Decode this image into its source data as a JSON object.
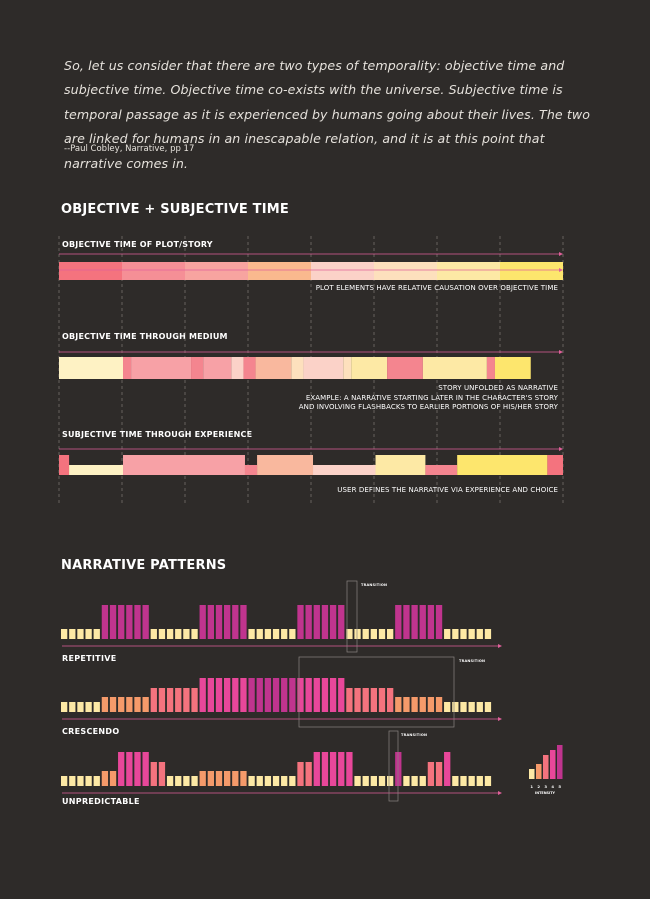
{
  "quote": {
    "text": "So, let us consider that there are two types of temporality: objective time and subjective time. Objective time co-exists with the universe. Subjective time is temporal passage as it is experienced by humans going about their lives. The two are linked for humans in an inescapable relation, and it is at this point that narrative comes in.",
    "citation": "--Paul Cobley, Narrative, pp 17"
  },
  "objective_section": {
    "title": "OBJECTIVE + SUBJECTIVE TIME",
    "plot": {
      "label": "OBJECTIVE TIME OF PLOT/STORY",
      "note": "PLOT ELEMENTS HAVE RELATIVE CAUSATION OVER OBJECTIVE TIME",
      "segments": [
        "#f4737e",
        "#f58f96",
        "#f7a4a0",
        "#fab98e",
        "#fbd2c8",
        "#fde0bd",
        "#fde9a5",
        "#fde66d"
      ]
    },
    "medium": {
      "label": "OBJECTIVE TIME THROUGH MEDIUM",
      "note_lines": [
        "STORY UNFOLDED AS NARRATIVE",
        "EXAMPLE: A NARRATIVE STARTING LATER IN THE CHARACTER'S STORY",
        "AND INVOLVING FLASHBACKS TO EARLIER PORTIONS OF HIS/HER STORY"
      ],
      "segments": [
        {
          "w": 0.127,
          "c": "#fef2c4"
        },
        {
          "w": 0.016,
          "c": "#f4858f"
        },
        {
          "w": 0.119,
          "c": "#f7a1a6"
        },
        {
          "w": 0.024,
          "c": "#f4858f"
        },
        {
          "w": 0.056,
          "c": "#f7a1a6"
        },
        {
          "w": 0.024,
          "c": "#fbd2c8"
        },
        {
          "w": 0.024,
          "c": "#f4858f"
        },
        {
          "w": 0.071,
          "c": "#f9b89e"
        },
        {
          "w": 0.024,
          "c": "#fde0bd"
        },
        {
          "w": 0.079,
          "c": "#fbd2c8"
        },
        {
          "w": 0.016,
          "c": "#fde0bd"
        },
        {
          "w": 0.071,
          "c": "#fde9a5"
        },
        {
          "w": 0.071,
          "c": "#f4858f"
        },
        {
          "w": 0.127,
          "c": "#fde9a5"
        },
        {
          "w": 0.016,
          "c": "#f4858f"
        },
        {
          "w": 0.071,
          "c": "#fde66d"
        }
      ]
    },
    "experience": {
      "label": "SUBJECTIVE TIME THROUGH EXPERIENCE",
      "note": "USER DEFINES THE NARRATIVE VIA EXPERIENCE AND CHOICE",
      "segments": [
        {
          "w": 0.02,
          "c": "#f4737e",
          "lvl": 0
        },
        {
          "w": 0.107,
          "c": "#fef2c4",
          "lvl": 1
        },
        {
          "w": 0.242,
          "c": "#f7a1a6",
          "lvl": 0
        },
        {
          "w": 0.024,
          "c": "#f4858f",
          "lvl": 1
        },
        {
          "w": 0.111,
          "c": "#f9b89e",
          "lvl": 0
        },
        {
          "w": 0.124,
          "c": "#fbd2c8",
          "lvl": 1
        },
        {
          "w": 0.099,
          "c": "#fde9a5",
          "lvl": 0
        },
        {
          "w": 0.063,
          "c": "#f4858f",
          "lvl": 1
        },
        {
          "w": 0.179,
          "c": "#fde66d",
          "lvl": 0
        },
        {
          "w": 0.031,
          "c": "#f4737e",
          "lvl": 0
        }
      ]
    }
  },
  "patterns": {
    "title": "NARRATIVE PATTERNS",
    "colors": [
      "#fde9a5",
      "#f59a6a",
      "#f4737e",
      "#e8479a",
      "#c0348e"
    ],
    "repetitive": {
      "label": "REPETITIVE",
      "transition_label": "TRANSITION",
      "levels": [
        1,
        1,
        1,
        1,
        1,
        5,
        5,
        5,
        5,
        5,
        5,
        1,
        1,
        1,
        1,
        1,
        1,
        5,
        5,
        5,
        5,
        5,
        5,
        1,
        1,
        1,
        1,
        1,
        1,
        5,
        5,
        5,
        5,
        5,
        5,
        1,
        1,
        1,
        1,
        1,
        1,
        5,
        5,
        5,
        5,
        5,
        5,
        1,
        1,
        1,
        1,
        1,
        1
      ]
    },
    "crescendo": {
      "label": "CRESCENDO",
      "transition_label": "TRANSITION",
      "levels": [
        1,
        1,
        1,
        1,
        1,
        2,
        2,
        2,
        2,
        2,
        2,
        3,
        3,
        3,
        3,
        3,
        3,
        4,
        4,
        4,
        4,
        4,
        4,
        5,
        5,
        5,
        5,
        5,
        5,
        4,
        4,
        4,
        4,
        4,
        4,
        3,
        3,
        3,
        3,
        3,
        3,
        2,
        2,
        2,
        2,
        2,
        2,
        1,
        1,
        1,
        1,
        1,
        1
      ]
    },
    "unpredictable": {
      "label": "UNPREDICTABLE",
      "transition_label": "TRANSITION",
      "levels": [
        1,
        1,
        1,
        1,
        1,
        2,
        2,
        4,
        4,
        4,
        4,
        3,
        3,
        1,
        1,
        1,
        1,
        2,
        2,
        2,
        2,
        2,
        2,
        1,
        1,
        1,
        1,
        1,
        1,
        3,
        3,
        4,
        4,
        4,
        4,
        4,
        1,
        1,
        1,
        1,
        1,
        5,
        1,
        1,
        1,
        3,
        3,
        4,
        1,
        1,
        1,
        1,
        1
      ]
    },
    "intensity": {
      "label": "INTENSITY",
      "ticks": [
        "1",
        "2",
        "3",
        "4",
        "5"
      ]
    }
  }
}
